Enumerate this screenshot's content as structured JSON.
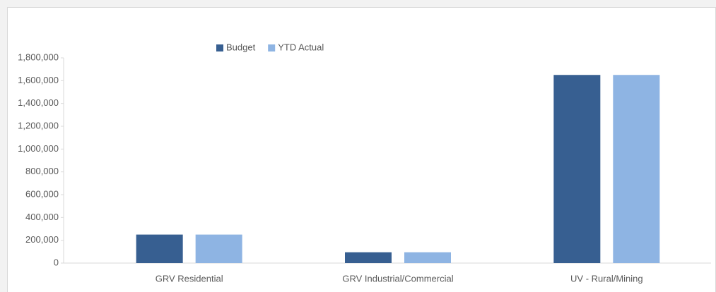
{
  "chart_data": {
    "type": "bar",
    "categories": [
      "GRV Residential",
      "GRV Industrial/Commercial",
      "UV - Rural/Mining"
    ],
    "series": [
      {
        "name": "Budget",
        "color": "#375f91",
        "values": [
          250000,
          95000,
          1650000
        ]
      },
      {
        "name": "YTD Actual",
        "color": "#8eb4e3",
        "values": [
          250000,
          95000,
          1650000
        ]
      }
    ],
    "ylim": [
      0,
      1800000
    ],
    "yticks": [
      0,
      {
        "value": 200000,
        "label": "200,000"
      },
      {
        "value": 400000,
        "label": "400,000"
      },
      {
        "value": 600000,
        "label": "600,000"
      },
      {
        "value": 800000,
        "label": "800,000"
      },
      {
        "value": 1000000,
        "label": "1,000,000"
      },
      {
        "value": 1200000,
        "label": "1,200,000"
      },
      {
        "value": 1400000,
        "label": "1,400,000"
      },
      {
        "value": 1600000,
        "label": "1,600,000"
      },
      {
        "value": 1800000,
        "label": "1,800,000"
      }
    ],
    "grid": false,
    "legend": "top"
  }
}
